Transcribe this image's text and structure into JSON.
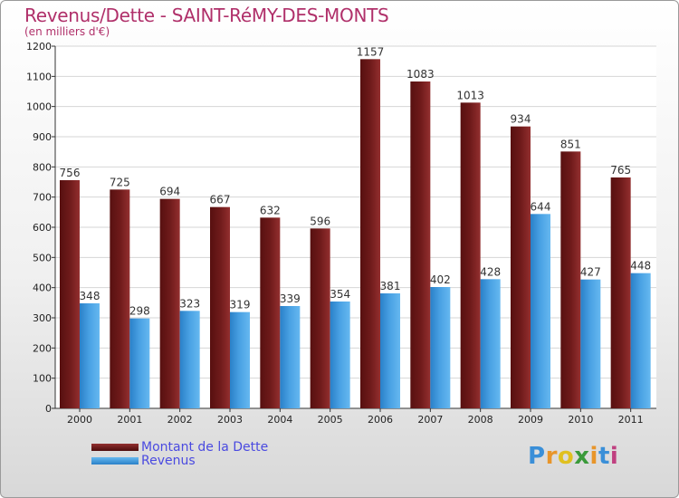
{
  "chart_data": {
    "type": "bar",
    "title": "Revenus/Dette - SAINT-RéMY-DES-MONTS",
    "subtitle": "(en milliers d'€)",
    "categories": [
      "2000",
      "2001",
      "2002",
      "2003",
      "2004",
      "2005",
      "2006",
      "2007",
      "2008",
      "2009",
      "2010",
      "2011"
    ],
    "series": [
      {
        "name": "Montant de la Dette",
        "color": "#7a1c1c",
        "values": [
          756,
          725,
          694,
          667,
          632,
          596,
          1157,
          1083,
          1013,
          934,
          851,
          765
        ]
      },
      {
        "name": "Revenus",
        "color": "#4ea6e6",
        "values": [
          348,
          298,
          323,
          319,
          339,
          354,
          381,
          402,
          428,
          644,
          427,
          448
        ]
      }
    ],
    "ylim": [
      0,
      1200
    ],
    "yticks": [
      0,
      100,
      200,
      300,
      400,
      500,
      600,
      700,
      800,
      900,
      1000,
      1100,
      1200
    ],
    "grid": true,
    "legend_position": "bottom-left"
  },
  "brand": {
    "logo_text": "Proxiti",
    "letter_colors": [
      "#3a8fd8",
      "#e8952a",
      "#e0c020",
      "#3a9a3a",
      "#e8952a",
      "#3a8fd8",
      "#c04080"
    ]
  }
}
